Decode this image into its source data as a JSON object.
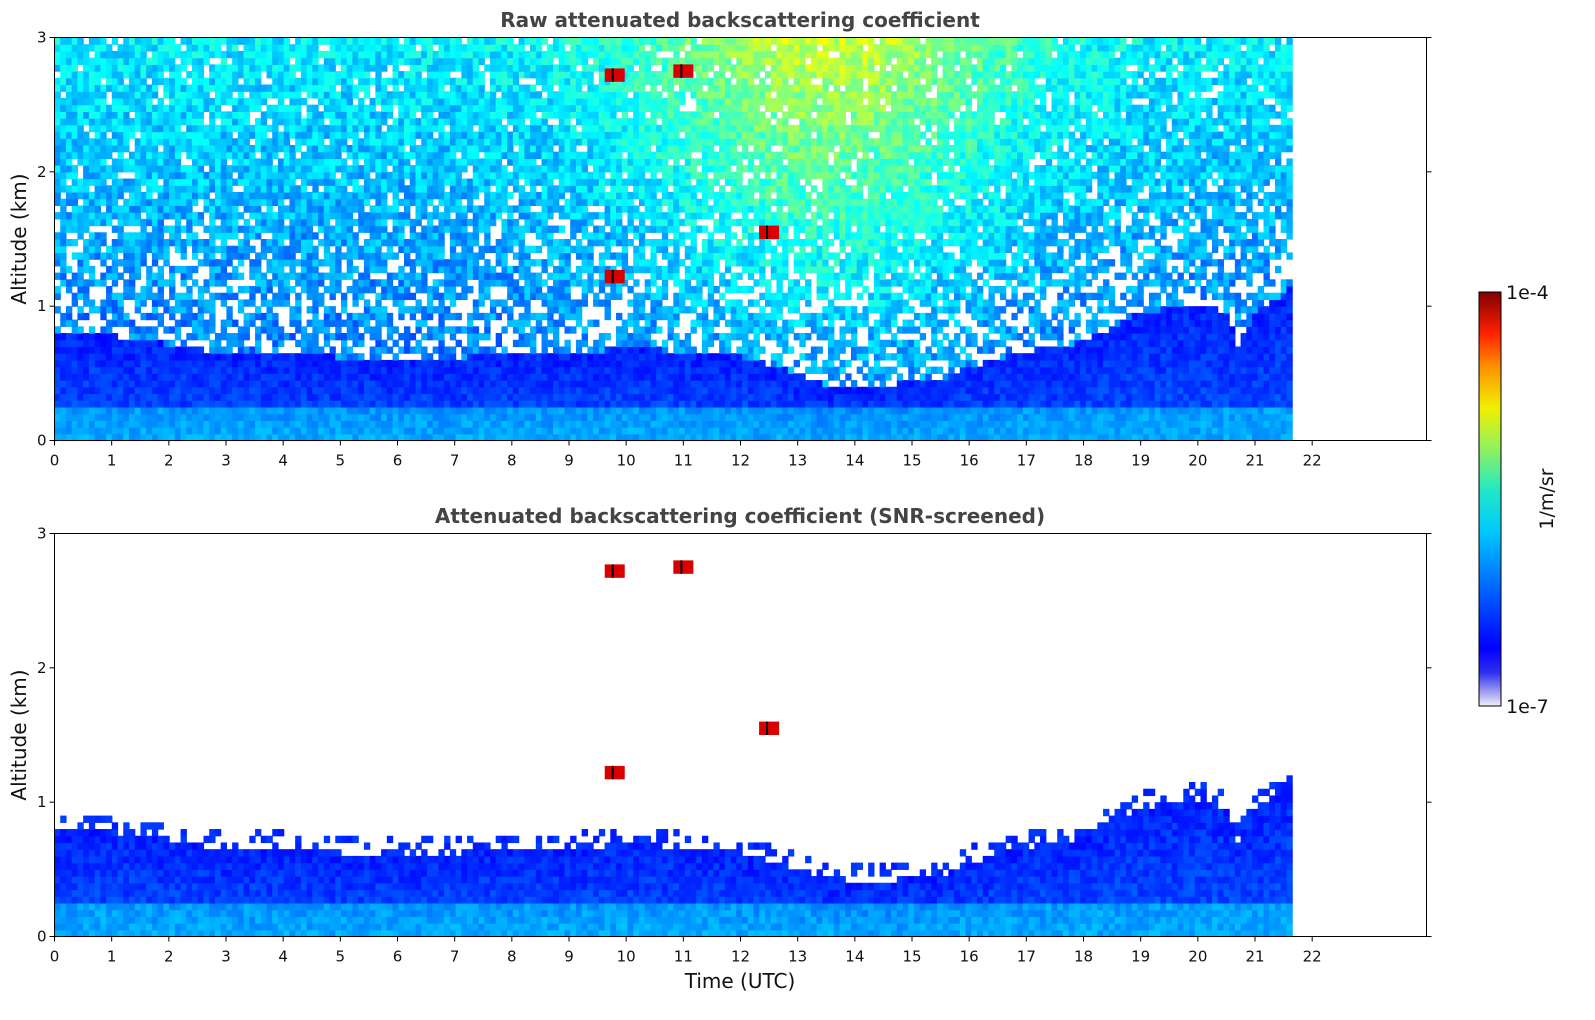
{
  "chart_data": [
    {
      "type": "heatmap",
      "title": "Raw attenuated backscattering coefficient",
      "xlabel": "",
      "ylabel": "Altitude (km)",
      "xlim": [
        0,
        24
      ],
      "ylim": [
        0,
        3
      ],
      "x_ticks": [
        "0",
        "1",
        "2",
        "3",
        "4",
        "5",
        "6",
        "7",
        "8",
        "9",
        "10",
        "11",
        "12",
        "13",
        "14",
        "15",
        "16",
        "17",
        "18",
        "19",
        "20",
        "21",
        "22"
      ],
      "y_ticks": [
        "0",
        "1",
        "2",
        "3"
      ],
      "data_end_time": 21.65,
      "colormap": "jet, log scale",
      "color_range": [
        "1e-7",
        "1e-4"
      ],
      "boundary_layer_top_km": [
        [
          0,
          0.78
        ],
        [
          1,
          0.78
        ],
        [
          2,
          0.72
        ],
        [
          3,
          0.65
        ],
        [
          4,
          0.66
        ],
        [
          5,
          0.62
        ],
        [
          6,
          0.62
        ],
        [
          7,
          0.62
        ],
        [
          8,
          0.64
        ],
        [
          9,
          0.64
        ],
        [
          10,
          0.7
        ],
        [
          11,
          0.66
        ],
        [
          12,
          0.63
        ],
        [
          13,
          0.5
        ],
        [
          13.5,
          0.42
        ],
        [
          14,
          0.41
        ],
        [
          15,
          0.43
        ],
        [
          15.5,
          0.45
        ],
        [
          16,
          0.55
        ],
        [
          17,
          0.66
        ],
        [
          18,
          0.74
        ],
        [
          19,
          0.95
        ],
        [
          20,
          1.02
        ],
        [
          20.5,
          0.95
        ],
        [
          20.7,
          0.72
        ],
        [
          21,
          0.95
        ],
        [
          21.65,
          1.15
        ]
      ],
      "features": [
        {
          "time": 11.0,
          "alt_km": 2.75,
          "note": "cloud"
        },
        {
          "time": 9.8,
          "alt_km": 2.72,
          "note": "cloud"
        },
        {
          "time": 9.8,
          "alt_km": 1.22,
          "note": "cloud"
        },
        {
          "time": 12.5,
          "alt_km": 1.55,
          "note": "cloud"
        }
      ]
    },
    {
      "type": "heatmap",
      "title": "Attenuated backscattering coefficient (SNR-screened)",
      "xlabel": "Time (UTC)",
      "ylabel": "Altitude (km)",
      "xlim": [
        0,
        24
      ],
      "ylim": [
        0,
        3
      ],
      "x_ticks": [
        "0",
        "1",
        "2",
        "3",
        "4",
        "5",
        "6",
        "7",
        "8",
        "9",
        "10",
        "11",
        "12",
        "13",
        "14",
        "15",
        "16",
        "17",
        "18",
        "19",
        "20",
        "21",
        "22"
      ],
      "y_ticks": [
        "0",
        "1",
        "2",
        "3"
      ],
      "data_end_time": 21.65,
      "colormap": "jet, log scale",
      "color_range": [
        "1e-7",
        "1e-4"
      ]
    }
  ],
  "colorbar": {
    "label": "1/m/sr",
    "max_label": "1e-4",
    "min_label": "1e-7"
  }
}
